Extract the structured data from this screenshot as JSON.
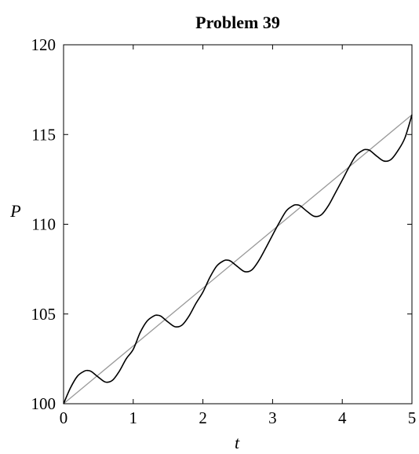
{
  "chart_data": {
    "type": "line",
    "title": "Problem 39",
    "xlabel": "t",
    "ylabel": "P",
    "xlim": [
      0,
      5
    ],
    "ylim": [
      100,
      120
    ],
    "xticks": [
      0,
      1,
      2,
      3,
      4,
      5
    ],
    "yticks": [
      100,
      105,
      110,
      115,
      120
    ],
    "xtick_labels": [
      "0",
      "1",
      "2",
      "3",
      "4",
      "5"
    ],
    "ytick_labels": [
      "100",
      "105",
      "110",
      "115",
      "120"
    ],
    "grid": false,
    "legend": "none",
    "series": [
      {
        "style": "black-solid",
        "color": "#000000",
        "x": [
          0,
          0.1,
          0.2,
          0.3,
          0.35,
          0.4,
          0.5,
          0.6,
          0.7,
          0.8,
          0.9,
          1.0,
          1.1,
          1.2,
          1.3,
          1.35,
          1.4,
          1.5,
          1.6,
          1.7,
          1.8,
          1.9,
          2.0,
          2.1,
          2.2,
          2.3,
          2.35,
          2.4,
          2.5,
          2.6,
          2.7,
          2.8,
          2.9,
          3.0,
          3.1,
          3.2,
          3.3,
          3.35,
          3.4,
          3.5,
          3.6,
          3.7,
          3.8,
          3.9,
          4.0,
          4.1,
          4.2,
          4.3,
          4.35,
          4.4,
          4.5,
          4.6,
          4.7,
          4.8,
          4.9,
          5.0
        ],
        "y": [
          100,
          100.89,
          101.54,
          101.82,
          101.85,
          101.79,
          101.48,
          101.21,
          101.3,
          101.81,
          102.51,
          103.03,
          103.97,
          104.61,
          104.9,
          104.93,
          104.87,
          104.55,
          104.29,
          104.38,
          104.88,
          105.59,
          106.22,
          107.04,
          107.68,
          107.97,
          108.0,
          107.94,
          107.63,
          107.36,
          107.45,
          107.96,
          108.66,
          109.4,
          110.12,
          110.76,
          111.05,
          111.08,
          111.02,
          110.7,
          110.44,
          110.53,
          111.03,
          111.74,
          112.46,
          113.2,
          113.84,
          114.13,
          114.16,
          114.1,
          113.78,
          113.52,
          113.61,
          114.11,
          114.82,
          116.1
        ]
      },
      {
        "style": "gray-solid",
        "color": "#999999",
        "x": [
          0,
          5
        ],
        "y": [
          100,
          116.1
        ]
      }
    ]
  }
}
